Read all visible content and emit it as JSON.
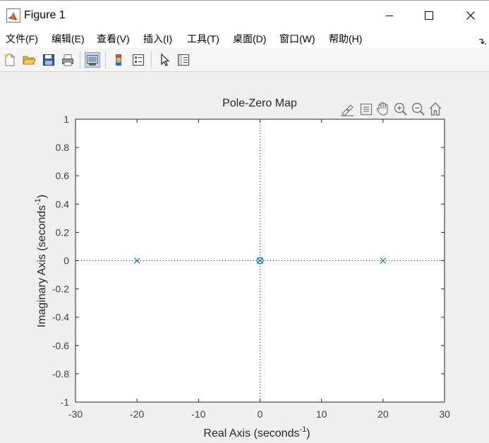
{
  "window": {
    "title": "Figure 1",
    "app_icon": "matlab-icon",
    "controls": [
      "minimize-icon",
      "maximize-icon",
      "close-icon"
    ]
  },
  "menubar": {
    "items": [
      {
        "label": "文件(F)"
      },
      {
        "label": "编辑(E)"
      },
      {
        "label": "查看(V)"
      },
      {
        "label": "插入(I)"
      },
      {
        "label": "工具(T)"
      },
      {
        "label": "桌面(D)"
      },
      {
        "label": "窗口(W)"
      },
      {
        "label": "帮助(H)"
      }
    ]
  },
  "toolbar": {
    "buttons": [
      "new-figure-icon",
      "open-file-icon",
      "save-icon",
      "print-icon",
      "link-plot-icon",
      "insert-colorbar-icon",
      "insert-legend-icon",
      "edit-plot-icon",
      "property-inspector-icon"
    ]
  },
  "axes_toolbar": {
    "buttons": [
      "brush-icon",
      "data-tips-icon",
      "pan-icon",
      "zoom-in-icon",
      "zoom-out-icon",
      "home-icon"
    ]
  },
  "chart_data": {
    "type": "scatter",
    "title": "Pole-Zero Map",
    "xlabel": "Real Axis (seconds",
    "xlabel_sup": "-1",
    "xlabel_end": ")",
    "ylabel": "Imaginary Axis (seconds",
    "ylabel_sup": "-1",
    "ylabel_end": ")",
    "xlim": [
      -30,
      30
    ],
    "ylim": [
      -1,
      1
    ],
    "xticks": [
      -30,
      -20,
      -10,
      0,
      10,
      20,
      30
    ],
    "xtick_labels": [
      "-30",
      "-20",
      "-10",
      "0",
      "10",
      "20",
      "30"
    ],
    "yticks": [
      -1,
      -0.8,
      -0.6,
      -0.4,
      -0.2,
      0,
      0.2,
      0.4,
      0.6,
      0.8,
      1
    ],
    "ytick_labels": [
      "-1",
      "-0.8",
      "-0.6",
      "-0.4",
      "-0.2",
      "0",
      "0.2",
      "0.4",
      "0.6",
      "0.8",
      "1"
    ],
    "grid": false,
    "marker_color": "#0072bd",
    "series": [
      {
        "marker": "x",
        "points": [
          {
            "x": -20,
            "y": 0
          },
          {
            "x": 0,
            "y": 0
          },
          {
            "x": 20,
            "y": 0
          }
        ]
      },
      {
        "marker": "o",
        "points": [
          {
            "x": 0,
            "y": 0
          }
        ]
      }
    ]
  }
}
